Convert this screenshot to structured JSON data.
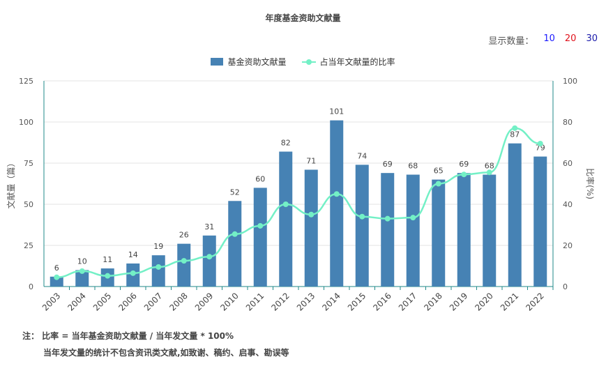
{
  "title": "年度基金资助文献量",
  "count_switch": {
    "label": "显示数量：",
    "options": [
      {
        "label": "10",
        "color": "#1a1aff"
      },
      {
        "label": "20",
        "color": "#e0101a"
      },
      {
        "label": "30",
        "color": "#1a1aaa"
      }
    ]
  },
  "notes": {
    "line1": "注：  比率 = 当年基金资助文献量 / 当年发文量 * 100%",
    "line2": "当年发文量的统计不包含资讯类文献,如致谢、稿约、启事、勘误等"
  },
  "chart_data": {
    "type": "bar",
    "categories": [
      "2003",
      "2004",
      "2005",
      "2006",
      "2007",
      "2008",
      "2009",
      "2010",
      "2011",
      "2012",
      "2013",
      "2014",
      "2015",
      "2016",
      "2017",
      "2018",
      "2019",
      "2020",
      "2021",
      "2022"
    ],
    "series": [
      {
        "name": "基金资助文献量",
        "type": "bar",
        "axis": "left",
        "color": "#4682b4",
        "values": [
          6,
          10,
          11,
          14,
          19,
          26,
          31,
          52,
          60,
          82,
          71,
          101,
          74,
          69,
          68,
          65,
          69,
          68,
          87,
          79
        ]
      },
      {
        "name": "占当年文献量的比率",
        "type": "line",
        "axis": "right",
        "color": "#73f0c6",
        "values": [
          4.5,
          7.5,
          5.2,
          6.5,
          9.5,
          12.5,
          14.5,
          25.5,
          29.5,
          40,
          35,
          45,
          34,
          33,
          33.5,
          50,
          54.5,
          55.5,
          77,
          69.5
        ]
      }
    ],
    "ylabel": "文献量（篇）",
    "y2label": "比率(%)",
    "ylim": [
      0,
      125
    ],
    "yticks": [
      0,
      25,
      50,
      75,
      100,
      125
    ],
    "y2lim": [
      0,
      100
    ],
    "y2ticks": [
      0,
      20,
      40,
      60,
      80,
      100
    ],
    "grid": true,
    "legend": "top-center"
  }
}
